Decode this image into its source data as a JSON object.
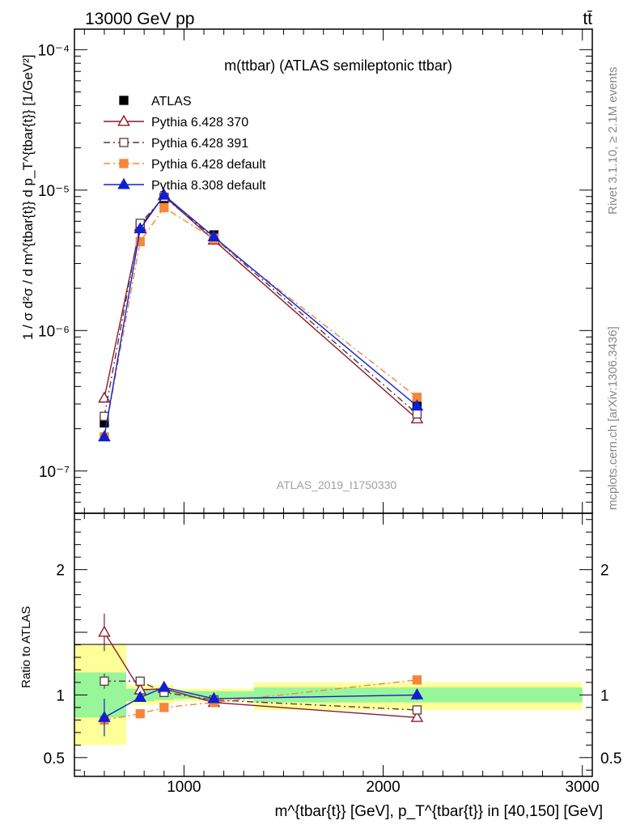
{
  "header": {
    "left": "13000 GeV pp",
    "right": "tt̄"
  },
  "side_labels": {
    "rivet": "Rivet 3.1.10, ≥ 2.1M events",
    "mcplots": "mcplots.cern.ch [arXiv:1306.3436]"
  },
  "watermark": "ATLAS_2019_I1750330",
  "chart_data": [
    {
      "type": "line",
      "title": "m(ttbar) (ATLAS semileptonic ttbar)",
      "ylabel": "1 / σ d²σ / d m^{tbar{t}} d p_T^{tbar{t}} [1/GeV²]",
      "xlabel": "m^{tbar{t}} [GeV], p_T^{tbar{t}} in [40,150] [GeV]",
      "yscale": "log",
      "xlim": [
        450,
        3050
      ],
      "ylim": [
        5e-08,
        0.00014
      ],
      "xticks": [
        1000,
        2000,
        3000
      ],
      "yticks": [
        {
          "value": 1e-07,
          "label": "10⁻⁷"
        },
        {
          "value": 1e-06,
          "label": "10⁻⁶"
        },
        {
          "value": 1e-05,
          "label": "10⁻⁵"
        },
        {
          "value": 0.0001,
          "label": "10⁻⁴"
        }
      ],
      "legend_position": "top-left",
      "bins": [
        [
          450,
          710
        ],
        [
          710,
          850
        ],
        [
          850,
          950
        ],
        [
          950,
          1350
        ],
        [
          1350,
          3000
        ]
      ],
      "x": [
        600,
        780,
        900,
        1150,
        2170
      ],
      "series": [
        {
          "name": "ATLAS",
          "color": "#000000",
          "marker": "square-filled",
          "line": "none",
          "values": [
            2.2e-07,
            5.6e-06,
            8.7e-06,
            4.8e-06,
            3e-07
          ]
        },
        {
          "name": "Pythia 6.428 370",
          "color": "#8b1a2b",
          "marker": "triangle-open",
          "line": "solid",
          "values": [
            3.3e-07,
            5.5e-06,
            9.1e-06,
            4.4e-06,
            2.35e-07
          ]
        },
        {
          "name": "Pythia 6.428 391",
          "color": "#5a3a3a",
          "marker": "square-open",
          "line": "dashdot",
          "values": [
            2.45e-07,
            5.8e-06,
            8.9e-06,
            4.6e-06,
            2.55e-07
          ]
        },
        {
          "name": "Pythia 6.428 default",
          "color": "#f5863a",
          "marker": "square-filled",
          "line": "dashdot",
          "values": [
            1.75e-07,
            4.3e-06,
            7.5e-06,
            4.5e-06,
            3.35e-07
          ]
        },
        {
          "name": "Pythia 8.308 default",
          "color": "#1020d0",
          "marker": "triangle-filled",
          "line": "solid",
          "values": [
            1.75e-07,
            5.3e-06,
            9.2e-06,
            4.65e-06,
            2.9e-07
          ]
        }
      ]
    },
    {
      "type": "line",
      "ylabel": "Ratio to ATLAS",
      "xlabel": "",
      "ylim": [
        0.35,
        2.45
      ],
      "xlim": [
        450,
        3050
      ],
      "yticks": [
        {
          "value": 0.5,
          "label": "0.5"
        },
        {
          "value": 1,
          "label": "1"
        },
        {
          "value": 2,
          "label": "2"
        }
      ],
      "xticks": [
        1000,
        2000,
        3000
      ],
      "bands": {
        "bins": [
          [
            450,
            710
          ],
          [
            710,
            850
          ],
          [
            850,
            950
          ],
          [
            950,
            1350
          ],
          [
            1350,
            3000
          ]
        ],
        "inner": [
          [
            0.82,
            1.18
          ],
          [
            0.95,
            1.05
          ],
          [
            0.96,
            1.04
          ],
          [
            0.97,
            1.03
          ],
          [
            0.94,
            1.06
          ]
        ],
        "outer": [
          [
            0.6,
            1.4
          ],
          [
            0.92,
            1.08
          ],
          [
            0.93,
            1.08
          ],
          [
            0.95,
            1.05
          ],
          [
            0.88,
            1.1
          ]
        ],
        "inner_color": "#99f599",
        "outer_color": "#ffff99"
      },
      "x": [
        600,
        780,
        900,
        1150,
        2170
      ],
      "series": [
        {
          "name": "Pythia 6.428 370",
          "color": "#8b1a2b",
          "marker": "triangle-open",
          "line": "solid",
          "values": [
            1.5,
            1.04,
            1.05,
            0.94,
            0.82
          ],
          "errors": [
            0.15,
            0.02,
            0.02,
            0.01,
            0.02
          ]
        },
        {
          "name": "Pythia 6.428 391",
          "color": "#5a3a3a",
          "marker": "square-open",
          "line": "dashdot",
          "values": [
            1.11,
            1.11,
            1.02,
            0.96,
            0.88
          ],
          "errors": [
            0.06,
            0.02,
            0.02,
            0.01,
            0.02
          ]
        },
        {
          "name": "Pythia 6.428 default",
          "color": "#f5863a",
          "marker": "square-filled",
          "line": "dashdot",
          "values": [
            0.8,
            0.85,
            0.9,
            0.94,
            1.12
          ],
          "errors": [
            0.02,
            0.02,
            0.02,
            0.01,
            0.02
          ]
        },
        {
          "name": "Pythia 8.308 default",
          "color": "#1020d0",
          "marker": "triangle-filled",
          "line": "solid",
          "values": [
            0.82,
            0.98,
            1.06,
            0.97,
            1.0
          ],
          "errors": [
            0.15,
            0.03,
            0.03,
            0.02,
            0.04
          ]
        }
      ]
    }
  ]
}
